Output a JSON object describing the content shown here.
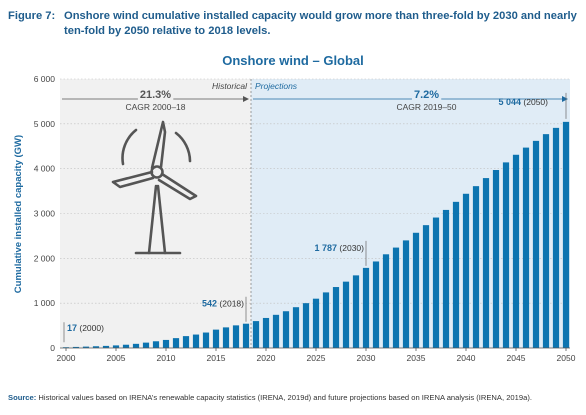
{
  "figure": {
    "label": "Figure 7:",
    "title": "Onshore wind cumulative installed capacity would grow more than three-fold by 2030 and nearly ten-fold by 2050 relative to 2018 levels."
  },
  "source": {
    "label": "Source:",
    "text": "Historical values based on IRENA’s renewable capacity statistics (IRENA, 2019d) and future projections based on IRENA analysis (IRENA, 2019a)."
  },
  "colors": {
    "bar": "#0c74b0",
    "projection_bg": "#e0ecf6",
    "historical_bg": "#f1f1f1",
    "accent": "#1e6aa0"
  },
  "chart_data": {
    "type": "bar",
    "title": "Onshore wind – Global",
    "ylabel": "Cumulative installed capacity (GW)",
    "xlabel": "",
    "ylim": [
      0,
      6000
    ],
    "yticks": [
      0,
      1000,
      2000,
      3000,
      4000,
      5000,
      6000
    ],
    "ytick_labels": [
      "0",
      "1 000",
      "2 000",
      "3 000",
      "4 000",
      "5 000",
      "6 000"
    ],
    "xticks": [
      "2000",
      "2005",
      "2010",
      "2015",
      "2020",
      "2025",
      "2030",
      "2035",
      "2040",
      "2045",
      "2050"
    ],
    "x": [
      2000,
      2001,
      2002,
      2003,
      2004,
      2005,
      2006,
      2007,
      2008,
      2009,
      2010,
      2011,
      2012,
      2013,
      2014,
      2015,
      2016,
      2017,
      2018,
      2019,
      2020,
      2021,
      2022,
      2023,
      2024,
      2025,
      2026,
      2027,
      2028,
      2029,
      2030,
      2031,
      2032,
      2033,
      2034,
      2035,
      2036,
      2037,
      2038,
      2039,
      2040,
      2041,
      2042,
      2043,
      2044,
      2045,
      2046,
      2047,
      2048,
      2049,
      2050
    ],
    "values": [
      17,
      24,
      31,
      39,
      47,
      58,
      73,
      93,
      120,
      150,
      180,
      220,
      265,
      300,
      345,
      410,
      460,
      505,
      542,
      600,
      670,
      740,
      820,
      910,
      1000,
      1100,
      1240,
      1360,
      1480,
      1620,
      1787,
      1930,
      2090,
      2240,
      2400,
      2570,
      2740,
      2910,
      3080,
      3260,
      3440,
      3610,
      3790,
      3970,
      4140,
      4310,
      4470,
      4620,
      4770,
      4910,
      5044
    ],
    "segments": {
      "historical": {
        "label": "Historical",
        "cagr": "21.3%",
        "cagr_label": "CAGR 2000–18"
      },
      "projections": {
        "label": "Projections",
        "cagr": "7.2%",
        "cagr_label": "CAGR 2019–50"
      }
    },
    "annotations": [
      {
        "year": 2000,
        "value_label": "17",
        "year_label": "(2000)"
      },
      {
        "year": 2018,
        "value_label": "542",
        "year_label": "(2018)"
      },
      {
        "year": 2030,
        "value_label": "1 787",
        "year_label": "(2030)"
      },
      {
        "year": 2050,
        "value_label": "5 044",
        "year_label": "(2050)"
      }
    ]
  }
}
